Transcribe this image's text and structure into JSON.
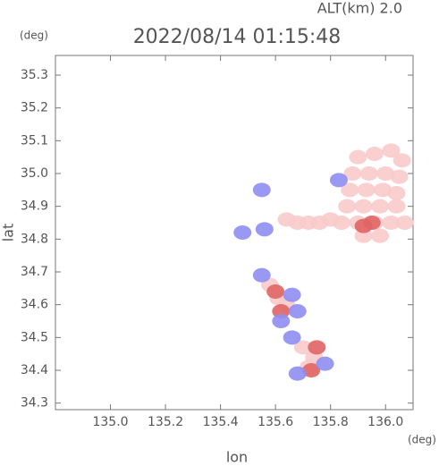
{
  "chart_data": {
    "type": "scatter",
    "title": "2022/08/14 01:15:48",
    "subtitle": "ALT(km) 2.0",
    "x_label": "lon",
    "y_label": "lat",
    "x_unit": "(deg)",
    "y_unit": "(deg)",
    "xlim": [
      134.8,
      136.1
    ],
    "ylim": [
      34.28,
      35.36
    ],
    "xticks": [
      {
        "value": 135,
        "label": "135.0"
      },
      135.2,
      135.4,
      135.6,
      135.8,
      {
        "value": 136,
        "label": "136.0"
      }
    ],
    "yticks": [
      34.3,
      34.4,
      34.5,
      34.6,
      34.7,
      34.8,
      34.9,
      {
        "value": 35,
        "label": "35.0"
      },
      35.1,
      35.2,
      35.3
    ],
    "grid": false,
    "series": [
      {
        "color": "#f8caca",
        "x": [
          135.9,
          135.96,
          136.02,
          136.06,
          135.88,
          135.94,
          136.0,
          136.05,
          135.87,
          135.93,
          135.99,
          136.04,
          135.86,
          135.92,
          135.98,
          136.04,
          135.84,
          135.9,
          135.96,
          136.02,
          136.07,
          135.92,
          135.98,
          135.64,
          135.68,
          135.72,
          135.76,
          135.8,
          135.61,
          135.64,
          135.58,
          135.7,
          135.74,
          135.72
        ],
        "values": [
          35.05,
          35.06,
          35.07,
          35.04,
          35.0,
          35.0,
          35.0,
          34.99,
          34.95,
          34.95,
          34.95,
          34.94,
          34.9,
          34.9,
          34.9,
          34.9,
          34.85,
          34.85,
          34.85,
          34.85,
          34.85,
          34.81,
          34.81,
          34.86,
          34.85,
          34.85,
          34.85,
          34.86,
          34.62,
          34.6,
          34.66,
          34.47,
          34.44,
          34.41
        ]
      },
      {
        "color": "#e06464",
        "x": [
          135.92,
          135.95,
          135.6,
          135.62,
          135.75,
          135.73
        ],
        "values": [
          34.84,
          34.85,
          34.64,
          34.58,
          34.47,
          34.4
        ]
      },
      {
        "color": "#8e8ef2",
        "x": [
          135.48,
          135.56,
          135.55,
          135.66,
          135.68,
          135.62,
          135.66,
          135.68,
          135.78,
          135.55,
          135.83
        ],
        "values": [
          34.82,
          34.83,
          34.69,
          34.63,
          34.58,
          34.55,
          34.5,
          34.39,
          34.42,
          34.95,
          34.98
        ]
      }
    ]
  }
}
